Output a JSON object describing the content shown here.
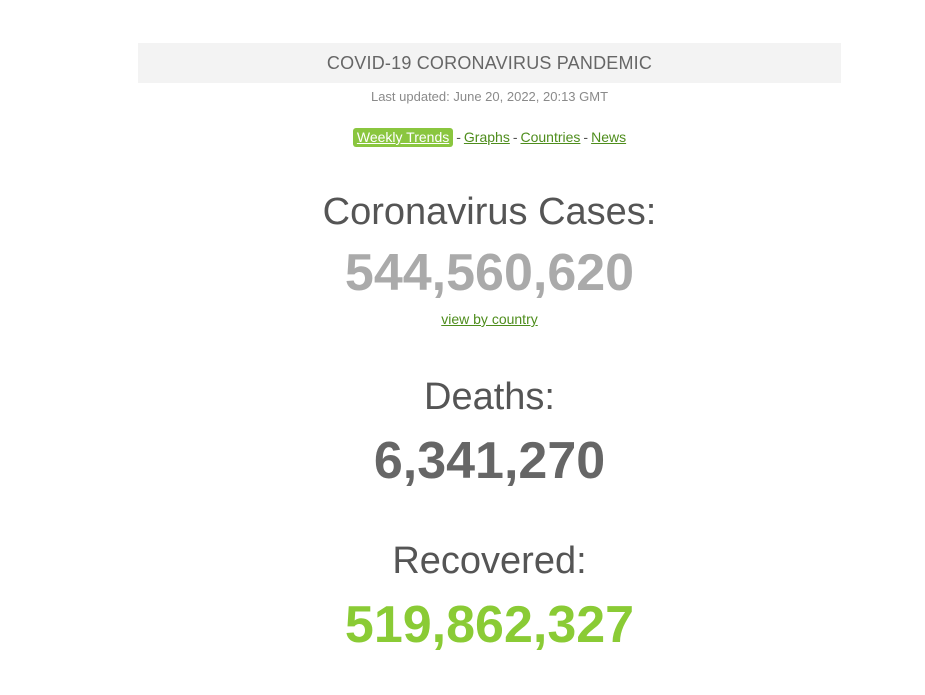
{
  "header": {
    "title": "COVID-19 CORONAVIRUS PANDEMIC",
    "last_updated": "Last updated: June 20, 2022, 20:13 GMT"
  },
  "nav": {
    "items": [
      {
        "label": "Weekly Trends",
        "active": true
      },
      {
        "label": "Graphs",
        "active": false
      },
      {
        "label": "Countries",
        "active": false
      },
      {
        "label": "News",
        "active": false
      }
    ],
    "separator": "-"
  },
  "stats": {
    "cases": {
      "label": "Coronavirus Cases:",
      "value": "544,560,620",
      "link": "view by country"
    },
    "deaths": {
      "label": "Deaths:",
      "value": "6,341,270"
    },
    "recovered": {
      "label": "Recovered:",
      "value": "519,862,327"
    }
  },
  "colors": {
    "banner_bg": "#f3f3f3",
    "link_green": "#4e8d1c",
    "active_tab_bg": "#8ac63f",
    "cases_gray": "#aaaaaa",
    "deaths_gray": "#666666",
    "recovered_green": "#8acb35"
  }
}
